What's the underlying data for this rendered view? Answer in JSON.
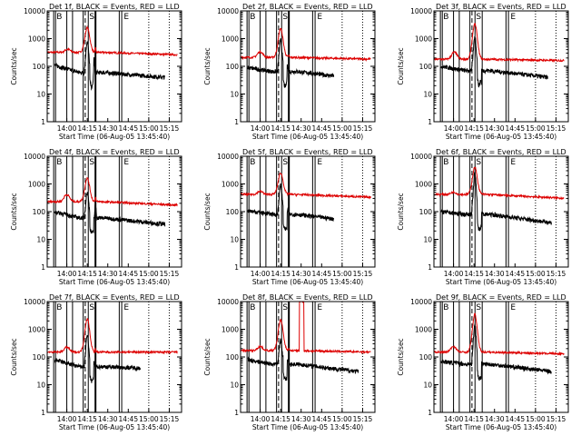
{
  "chart_data": {
    "type": "line",
    "layout": "3x3 grid",
    "y_scale": "log",
    "ylim": [
      1,
      10000
    ],
    "ylabel": "Counts/sec",
    "y_ticks": [
      "1",
      "10",
      "100",
      "1000",
      "10000"
    ],
    "x_ticks": [
      "14:00",
      "14:15",
      "14:30",
      "14:45",
      "15:00",
      "15:15"
    ],
    "xlabel": "Start Time (06-Aug-05 13:45:40)",
    "legend_text": "BLACK = Events, RED = LLD",
    "colors": {
      "events": "#000000",
      "lld": "#dd0000"
    },
    "x_range_hours": [
      13.7611,
      15.4
    ],
    "panels": [
      {
        "title": "Det 1f",
        "markers": [
          "B",
          "S",
          "E"
        ],
        "lines": [
          {
            "t": 13.84,
            "style": "solid"
          },
          {
            "t": 13.863,
            "style": "solid"
          },
          {
            "t": 14.0,
            "style": "solid"
          },
          {
            "t": 14.07,
            "style": "solid"
          },
          {
            "t": 14.2,
            "style": "solid"
          },
          {
            "t": 14.225,
            "style": "dashed"
          },
          {
            "t": 14.262,
            "style": "solid"
          },
          {
            "t": 14.35,
            "style": "thick"
          },
          {
            "t": 14.64,
            "style": "solid"
          },
          {
            "t": 14.67,
            "style": "solid"
          },
          {
            "t": 15.0,
            "style": "dotted"
          },
          {
            "t": 15.25,
            "style": "dotted"
          }
        ],
        "events": {
          "base": 110,
          "peak": 800,
          "peak_t": 14.25,
          "dip": 0.3,
          "after": 60,
          "bump_t": 14.33,
          "bump_h": 3.5,
          "end_t": 15.2,
          "end_v": 40
        },
        "lld": {
          "base": 320,
          "peak": 2500,
          "peak_t": 14.25,
          "early_t": 14.01,
          "early_h": 1.3,
          "end_v": 260,
          "spike_t": 14.35,
          "spike_h": 1.4
        }
      },
      {
        "title": "Det 2f",
        "markers": [
          "B",
          "S",
          "E"
        ],
        "lines": [
          {
            "t": 13.84,
            "style": "solid"
          },
          {
            "t": 13.863,
            "style": "solid"
          },
          {
            "t": 14.0,
            "style": "solid"
          },
          {
            "t": 14.07,
            "style": "solid"
          },
          {
            "t": 14.2,
            "style": "solid"
          },
          {
            "t": 14.225,
            "style": "dashed"
          },
          {
            "t": 14.262,
            "style": "solid"
          },
          {
            "t": 14.35,
            "style": "thick"
          },
          {
            "t": 14.64,
            "style": "solid"
          },
          {
            "t": 14.67,
            "style": "solid"
          },
          {
            "t": 15.0,
            "style": "dotted"
          },
          {
            "t": 15.25,
            "style": "dotted"
          }
        ],
        "events": {
          "base": 90,
          "peak": 900,
          "peak_t": 14.25,
          "dip": 0.3,
          "after": 65,
          "bump_t": 14.33,
          "bump_h": 2.0,
          "end_t": 14.9,
          "end_v": 45
        },
        "lld": {
          "base": 210,
          "peak": 2300,
          "peak_t": 14.25,
          "early_t": 14.0,
          "early_h": 1.6,
          "end_v": 180,
          "spike_t": 14.35,
          "spike_h": 1.2
        }
      },
      {
        "title": "Det 3f",
        "markers": [
          "B",
          "S",
          "E"
        ],
        "lines": [
          {
            "t": 13.84,
            "style": "solid"
          },
          {
            "t": 13.863,
            "style": "solid"
          },
          {
            "t": 14.0,
            "style": "solid"
          },
          {
            "t": 14.07,
            "style": "solid"
          },
          {
            "t": 14.2,
            "style": "solid"
          },
          {
            "t": 14.225,
            "style": "dashed"
          },
          {
            "t": 14.262,
            "style": "solid"
          },
          {
            "t": 14.35,
            "style": "solid"
          },
          {
            "t": 14.64,
            "style": "solid"
          },
          {
            "t": 14.67,
            "style": "solid"
          },
          {
            "t": 15.0,
            "style": "dotted"
          },
          {
            "t": 15.25,
            "style": "dotted"
          }
        ],
        "events": {
          "base": 100,
          "peak": 1200,
          "peak_t": 14.26,
          "dip": 0.3,
          "after": 70,
          "bump_t": 14.33,
          "bump_h": 1.5,
          "end_t": 15.15,
          "end_v": 40
        },
        "lld": {
          "base": 180,
          "peak": 3500,
          "peak_t": 14.26,
          "early_t": 14.01,
          "early_h": 1.8,
          "end_v": 160,
          "spike_t": 14.35,
          "spike_h": 1.0
        }
      },
      {
        "title": "Det 4f",
        "markers": [
          "B",
          "S",
          "E"
        ],
        "lines": [
          {
            "t": 13.84,
            "style": "solid"
          },
          {
            "t": 13.863,
            "style": "solid"
          },
          {
            "t": 14.0,
            "style": "solid"
          },
          {
            "t": 14.07,
            "style": "solid"
          },
          {
            "t": 14.2,
            "style": "solid"
          },
          {
            "t": 14.225,
            "style": "dashed"
          },
          {
            "t": 14.262,
            "style": "solid"
          },
          {
            "t": 14.35,
            "style": "thick"
          },
          {
            "t": 14.64,
            "style": "solid"
          },
          {
            "t": 14.67,
            "style": "solid"
          },
          {
            "t": 15.0,
            "style": "dotted"
          },
          {
            "t": 15.25,
            "style": "dotted"
          }
        ],
        "events": {
          "base": 100,
          "peak": 500,
          "peak_t": 14.25,
          "dip": 0.3,
          "after": 60,
          "bump_t": 14.35,
          "bump_h": 3.0,
          "end_t": 15.2,
          "end_v": 35
        },
        "lld": {
          "base": 230,
          "peak": 1600,
          "peak_t": 14.25,
          "early_t": 14.0,
          "early_h": 1.8,
          "end_v": 170,
          "spike_t": 14.35,
          "spike_h": 1.5
        }
      },
      {
        "title": "Det 5f",
        "markers": [
          "B",
          "S",
          "E"
        ],
        "lines": [
          {
            "t": 13.84,
            "style": "solid"
          },
          {
            "t": 13.863,
            "style": "solid"
          },
          {
            "t": 14.0,
            "style": "solid"
          },
          {
            "t": 14.07,
            "style": "solid"
          },
          {
            "t": 14.2,
            "style": "solid"
          },
          {
            "t": 14.225,
            "style": "dashed"
          },
          {
            "t": 14.262,
            "style": "solid"
          },
          {
            "t": 14.35,
            "style": "thick"
          },
          {
            "t": 14.64,
            "style": "solid"
          },
          {
            "t": 14.67,
            "style": "solid"
          },
          {
            "t": 15.0,
            "style": "dotted"
          },
          {
            "t": 15.25,
            "style": "dotted"
          }
        ],
        "events": {
          "base": 110,
          "peak": 900,
          "peak_t": 14.25,
          "dip": 0.3,
          "after": 80,
          "bump_t": 14.34,
          "bump_h": 1.5,
          "end_t": 14.9,
          "end_v": 55
        },
        "lld": {
          "base": 420,
          "peak": 2500,
          "peak_t": 14.25,
          "early_t": 14.0,
          "early_h": 1.3,
          "end_v": 330,
          "spike_t": 14.35,
          "spike_h": 1.1
        }
      },
      {
        "title": "Det 6f",
        "markers": [
          "B",
          "S",
          "E"
        ],
        "lines": [
          {
            "t": 13.84,
            "style": "solid"
          },
          {
            "t": 13.863,
            "style": "solid"
          },
          {
            "t": 14.0,
            "style": "solid"
          },
          {
            "t": 14.07,
            "style": "solid"
          },
          {
            "t": 14.2,
            "style": "solid"
          },
          {
            "t": 14.225,
            "style": "dashed"
          },
          {
            "t": 14.262,
            "style": "solid"
          },
          {
            "t": 14.35,
            "style": "solid"
          },
          {
            "t": 14.64,
            "style": "solid"
          },
          {
            "t": 14.67,
            "style": "solid"
          },
          {
            "t": 15.0,
            "style": "dotted"
          },
          {
            "t": 15.25,
            "style": "dotted"
          }
        ],
        "events": {
          "base": 100,
          "peak": 2500,
          "peak_t": 14.26,
          "dip": 0.3,
          "after": 80,
          "bump_t": 14.34,
          "bump_h": 1.3,
          "end_t": 15.2,
          "end_v": 40
        },
        "lld": {
          "base": 420,
          "peak": 4000,
          "peak_t": 14.26,
          "early_t": 14.0,
          "early_h": 1.2,
          "end_v": 300,
          "spike_t": 14.35,
          "spike_h": 1.0
        }
      },
      {
        "title": "Det 7f",
        "markers": [
          "B",
          "S",
          "E"
        ],
        "lines": [
          {
            "t": 13.84,
            "style": "solid"
          },
          {
            "t": 13.863,
            "style": "solid"
          },
          {
            "t": 14.0,
            "style": "solid"
          },
          {
            "t": 14.07,
            "style": "solid"
          },
          {
            "t": 14.2,
            "style": "solid"
          },
          {
            "t": 14.225,
            "style": "dashed"
          },
          {
            "t": 14.262,
            "style": "solid"
          },
          {
            "t": 14.35,
            "style": "thick"
          },
          {
            "t": 14.64,
            "style": "solid"
          },
          {
            "t": 14.67,
            "style": "solid"
          },
          {
            "t": 15.0,
            "style": "dotted"
          },
          {
            "t": 15.25,
            "style": "dotted"
          }
        ],
        "events": {
          "base": 80,
          "peak": 600,
          "peak_t": 14.25,
          "dip": 0.3,
          "after": 45,
          "bump_t": 14.33,
          "bump_h": 1.5,
          "end_t": 14.9,
          "end_v": 40
        },
        "lld": {
          "base": 150,
          "peak": 2400,
          "peak_t": 14.25,
          "early_t": 14.0,
          "early_h": 1.5,
          "end_v": 150,
          "spike_t": 14.35,
          "spike_h": 1.3
        }
      },
      {
        "title": "Det 8f",
        "markers": [
          "B",
          "S",
          "E"
        ],
        "lines": [
          {
            "t": 13.84,
            "style": "solid"
          },
          {
            "t": 13.863,
            "style": "solid"
          },
          {
            "t": 14.0,
            "style": "solid"
          },
          {
            "t": 14.07,
            "style": "solid"
          },
          {
            "t": 14.2,
            "style": "solid"
          },
          {
            "t": 14.225,
            "style": "dashed"
          },
          {
            "t": 14.262,
            "style": "solid"
          },
          {
            "t": 14.35,
            "style": "thick"
          },
          {
            "t": 14.64,
            "style": "solid"
          },
          {
            "t": 14.67,
            "style": "solid"
          },
          {
            "t": 15.0,
            "style": "dotted"
          },
          {
            "t": 15.25,
            "style": "dotted"
          }
        ],
        "events": {
          "base": 80,
          "peak": 400,
          "peak_t": 14.25,
          "dip": 0.3,
          "after": 55,
          "bump_t": 14.34,
          "bump_h": 1.5,
          "end_t": 15.2,
          "end_v": 30
        },
        "lld": {
          "base": 170,
          "peak": 2200,
          "peak_t": 14.25,
          "early_t": 14.0,
          "early_h": 1.4,
          "end_v": 150,
          "spike_t": 14.35,
          "spike_h": 1.2,
          "block": {
            "t0": 14.48,
            "t1": 14.535,
            "v": 10000
          }
        }
      },
      {
        "title": "Det 9f",
        "markers": [
          "B",
          "S",
          "E"
        ],
        "lines": [
          {
            "t": 13.84,
            "style": "solid"
          },
          {
            "t": 13.863,
            "style": "solid"
          },
          {
            "t": 14.0,
            "style": "solid"
          },
          {
            "t": 14.07,
            "style": "solid"
          },
          {
            "t": 14.2,
            "style": "solid"
          },
          {
            "t": 14.225,
            "style": "dashed"
          },
          {
            "t": 14.262,
            "style": "solid"
          },
          {
            "t": 14.35,
            "style": "solid"
          },
          {
            "t": 14.64,
            "style": "solid"
          },
          {
            "t": 14.67,
            "style": "solid"
          },
          {
            "t": 15.0,
            "style": "dotted"
          },
          {
            "t": 15.25,
            "style": "dotted"
          }
        ],
        "events": {
          "base": 70,
          "peak": 1500,
          "peak_t": 14.26,
          "dip": 0.3,
          "after": 55,
          "bump_t": 14.34,
          "bump_h": 1.2,
          "end_t": 15.2,
          "end_v": 30
        },
        "lld": {
          "base": 150,
          "peak": 3500,
          "peak_t": 14.26,
          "early_t": 14.0,
          "early_h": 1.6,
          "end_v": 130,
          "spike_t": 14.35,
          "spike_h": 1.0
        }
      }
    ]
  }
}
